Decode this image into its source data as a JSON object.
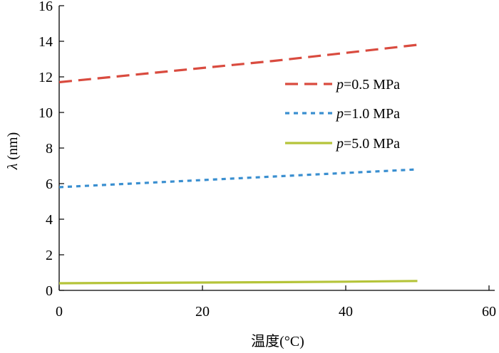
{
  "chart_data": {
    "type": "line",
    "title": "",
    "xlabel": "温度(°C)",
    "ylabel": "λ (nm)",
    "xlim": [
      0,
      60
    ],
    "ylim": [
      0,
      16
    ],
    "xticks": [
      0,
      20,
      40,
      60
    ],
    "yticks": [
      0,
      2,
      4,
      6,
      8,
      10,
      12,
      14,
      16
    ],
    "grid": false,
    "legend_position": "right",
    "series": [
      {
        "name": "p=0.5 MPa",
        "name_italic": "p",
        "name_rest": "=0.5 MPa",
        "color": "#d94b3f",
        "style": "dashed",
        "x": [
          0,
          10,
          20,
          30,
          40,
          50
        ],
        "y": [
          11.7,
          12.1,
          12.5,
          12.9,
          13.35,
          13.8
        ]
      },
      {
        "name": "p=1.0 MPa",
        "name_italic": "p",
        "name_rest": "=1.0 MPa",
        "color": "#3a8fd0",
        "style": "dotted",
        "x": [
          0,
          10,
          20,
          30,
          40,
          50
        ],
        "y": [
          5.8,
          6.0,
          6.2,
          6.4,
          6.6,
          6.8
        ]
      },
      {
        "name": "p=5.0 MPa",
        "name_italic": "p",
        "name_rest": "=5.0 MPa",
        "color": "#b5c43a",
        "style": "solid",
        "x": [
          0,
          10,
          20,
          30,
          40,
          50
        ],
        "y": [
          0.4,
          0.42,
          0.44,
          0.46,
          0.49,
          0.53
        ]
      }
    ]
  }
}
